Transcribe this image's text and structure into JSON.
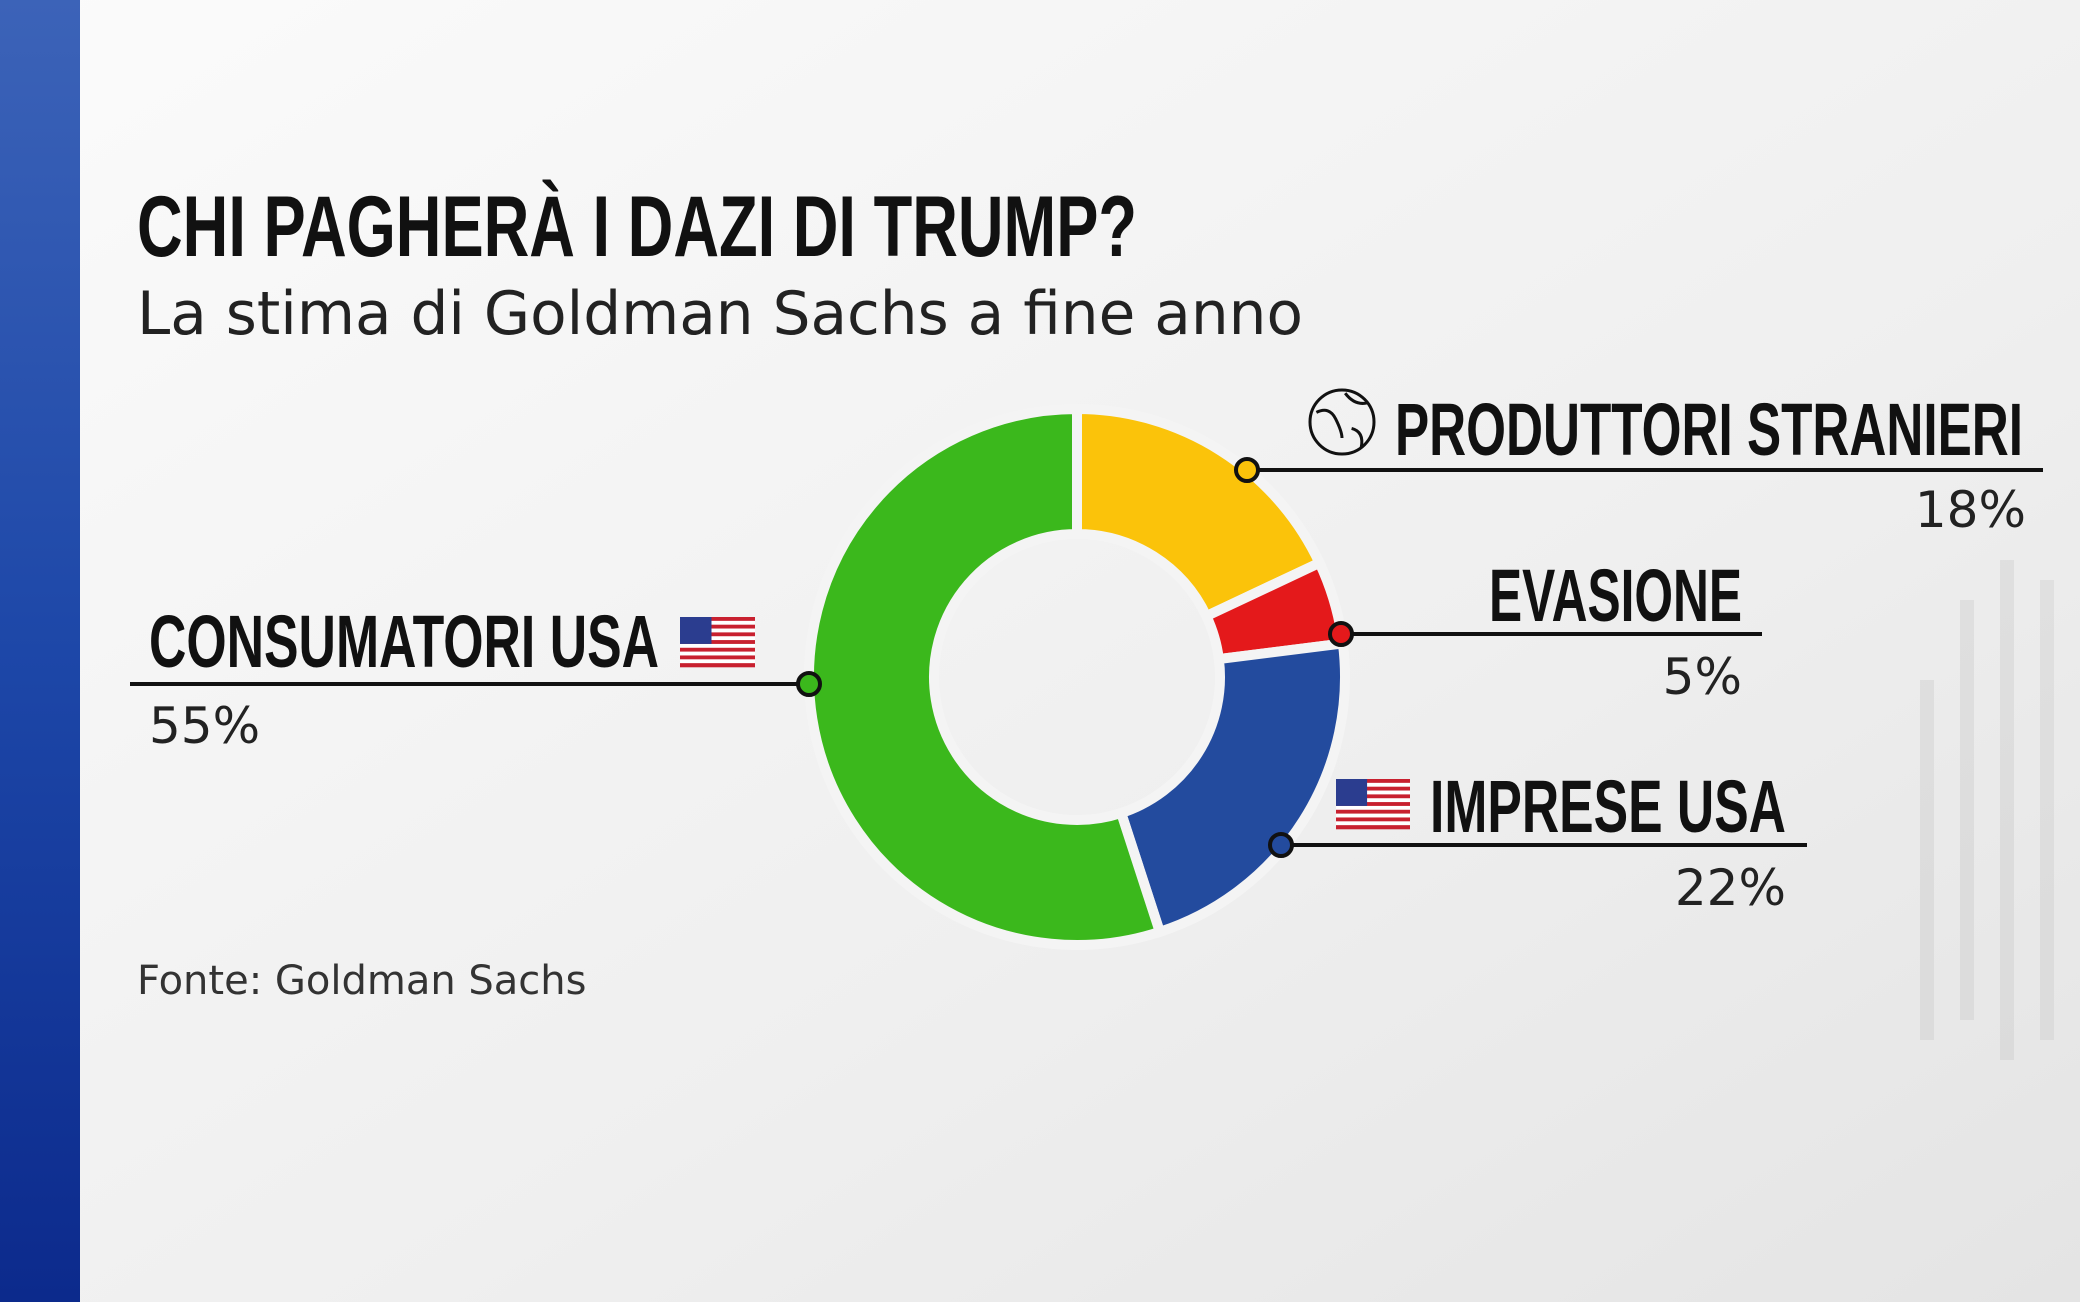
{
  "chart_data": {
    "type": "pie",
    "donut": true,
    "title": "CHI PAGHERÀ I DAZI DI TRUMP?",
    "subtitle": "La stima di Goldman Sachs a fine anno",
    "source": "Fonte: Goldman Sachs",
    "categories": [
      "PRODUTTORI STRANIERI",
      "EVASIONE",
      "IMPRESE USA",
      "CONSUMATORI USA"
    ],
    "values": [
      18,
      5,
      22,
      55
    ],
    "value_labels": [
      "18%",
      "5%",
      "22%",
      "55%"
    ],
    "colors": [
      "#fbc30a",
      "#e4191b",
      "#234b9e",
      "#3bb81c"
    ]
  }
}
